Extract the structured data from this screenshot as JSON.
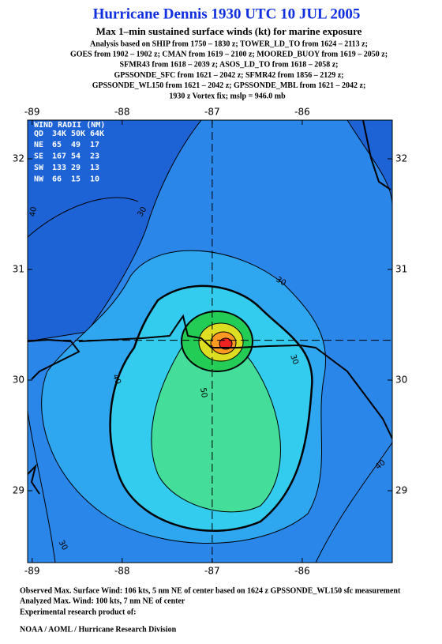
{
  "header": {
    "title": "Hurricane Dennis 1930 UTC 10 JUL 2005",
    "subtitle": "Max 1–min sustained surface winds (kt) for marine exposure",
    "analysis": [
      "Analysis based on  SHIP from 1750 – 1830 z;  TOWER_LD_TO from 1624 – 2113 z;",
      "GOES from 1902 – 1902 z;  CMAN from 1619 – 2100 z;  MOORED_BUOY from 1619 – 2050 z;",
      "SFMR43 from 1618 – 2039 z;  ASOS_LD_TO from 1618 – 2058 z;",
      "GPSSONDE_SFC from 1621 – 2042 z;  SFMR42 from 1856 – 2129 z;",
      "GPSSONDE_WL150 from 1621 – 2042 z;  GPSSONDE_MBL from 1621 – 2042 z;"
    ],
    "vortex": "1930 z Vortex fix; mslp = 946.0 mb"
  },
  "map": {
    "xlim": [
      -89.05,
      -85.0
    ],
    "ylim": [
      28.35,
      32.35
    ],
    "xticks": [
      -89,
      -88,
      -87,
      -86
    ],
    "yticks": [
      29,
      30,
      31,
      32
    ],
    "center": {
      "lon": -87.0,
      "lat": 30.36
    },
    "contour_labels": [
      30,
      40,
      30,
      40,
      50,
      40,
      30,
      30
    ]
  },
  "wind_radii": {
    "title": "WIND RADII (NM)",
    "columns": [
      "QD",
      "34K",
      "50K",
      "64K"
    ],
    "rows": [
      [
        "NE",
        65,
        49,
        17
      ],
      [
        "SE",
        167,
        54,
        23
      ],
      [
        "SW",
        133,
        29,
        13
      ],
      [
        "NW",
        66,
        15,
        10
      ]
    ]
  },
  "footer": {
    "observed": "Observed Max. Surface Wind: 106 kts, 5 nm NE of center based on 1624 z GPSSONDE_WL150 sfc measurement",
    "analyzed": "Analyzed Max. Wind: 100 kts, 7 nm NE of center",
    "experimental": "Experimental research product of:",
    "organization": "NOAA / AOML / Hurricane Research Division"
  }
}
